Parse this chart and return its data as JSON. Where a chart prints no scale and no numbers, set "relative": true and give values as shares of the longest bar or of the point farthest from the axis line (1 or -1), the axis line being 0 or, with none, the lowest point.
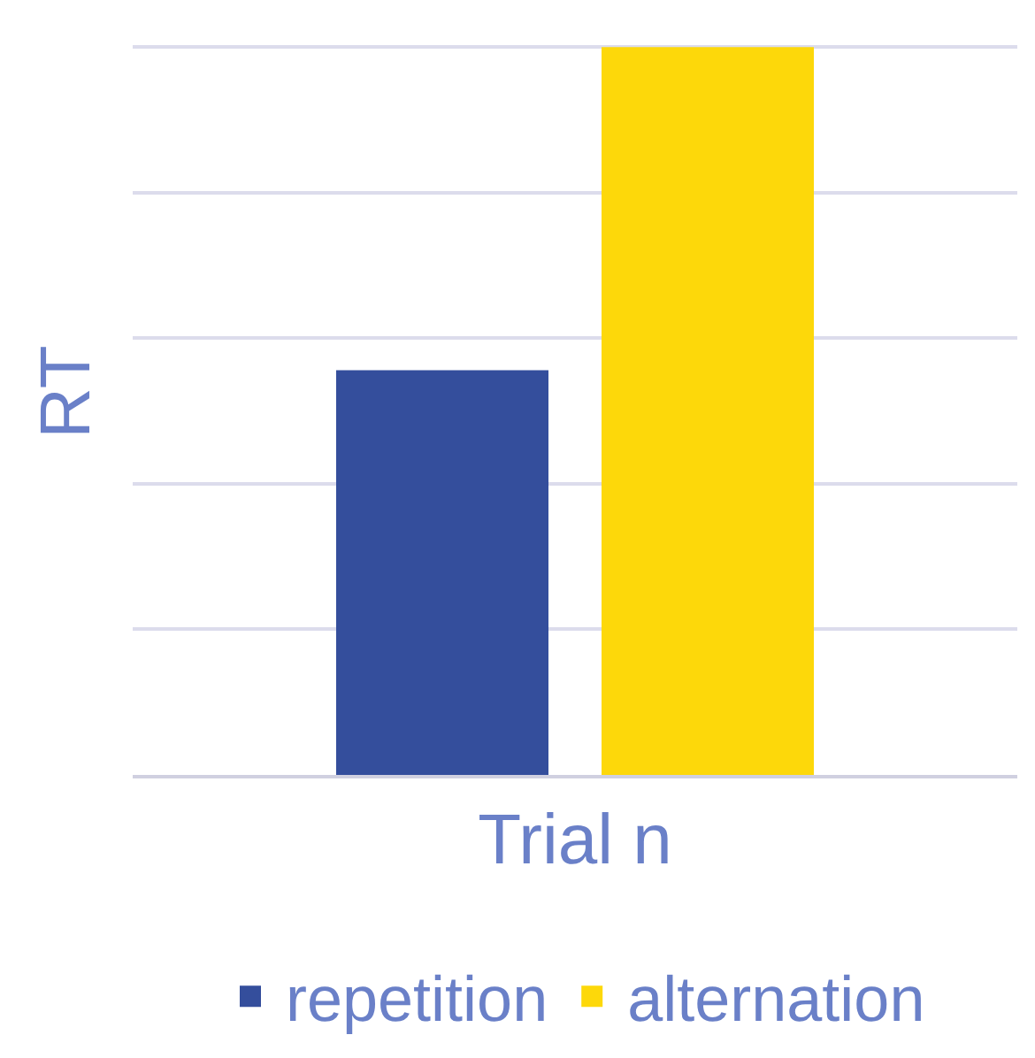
{
  "chart_data": {
    "type": "bar",
    "relative": true,
    "ylabel": "RT",
    "categories": [
      "Trial n"
    ],
    "series": [
      {
        "name": "repetition",
        "color": "#344e9c",
        "values": [
          0.556
        ]
      },
      {
        "name": "alternation",
        "color": "#fdd80a",
        "values": [
          1
        ]
      }
    ],
    "grid": "y",
    "legend": "bottom"
  }
}
